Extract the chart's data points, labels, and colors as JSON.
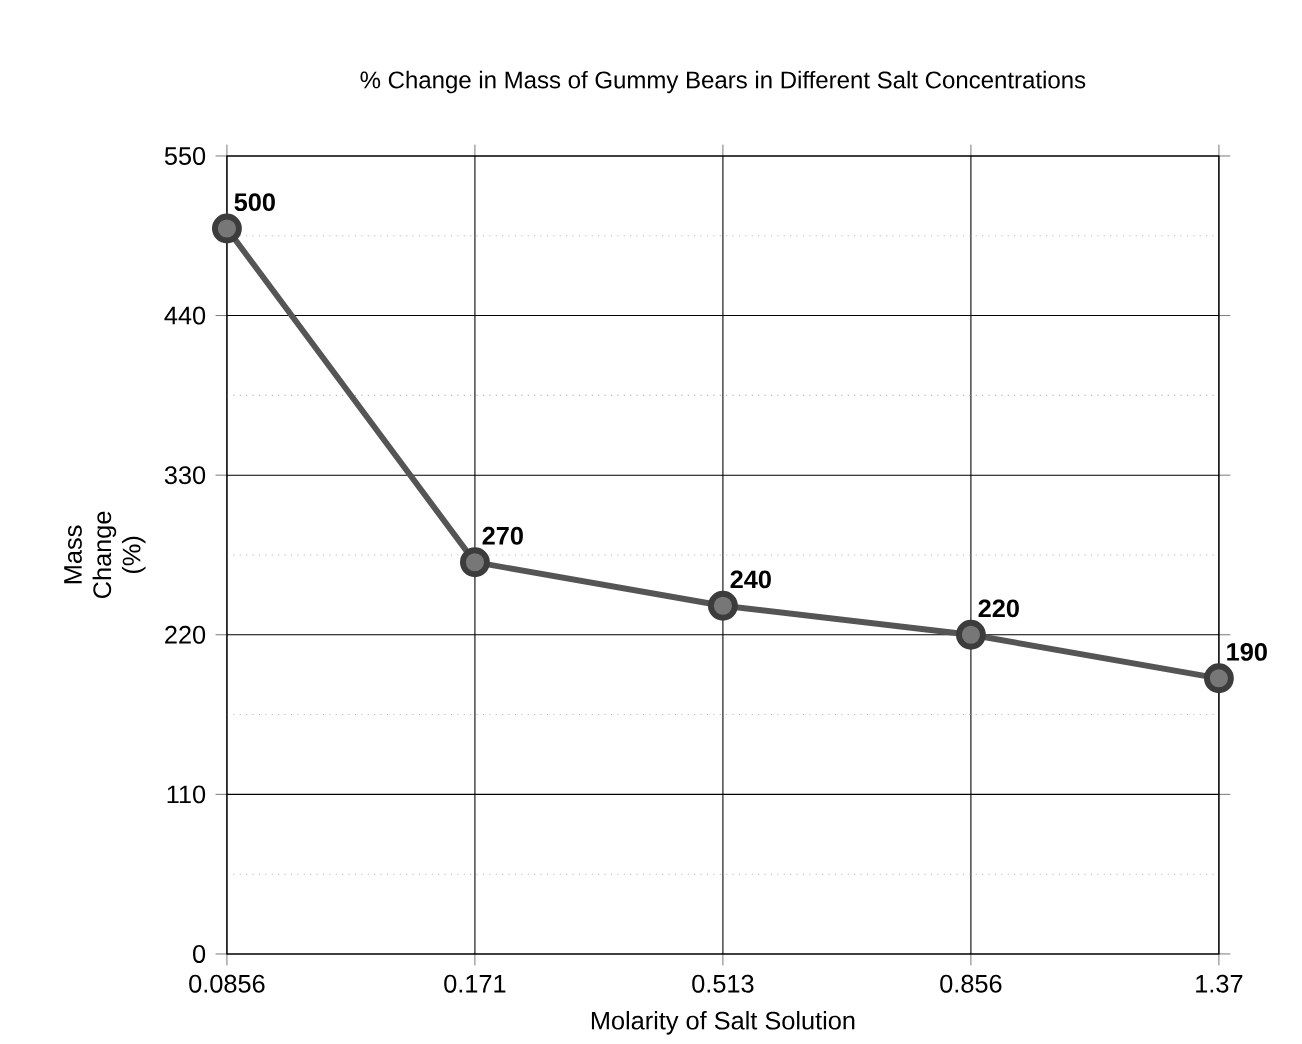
{
  "chart_data": {
    "type": "line",
    "title": "% Change in Mass of Gummy Bears in Different Salt Concentrations",
    "xlabel": "Molarity of Salt Solution",
    "ylabel": "Mass Change (%)",
    "categories": [
      "0.0856",
      "0.171",
      "0.513",
      "0.856",
      "1.37"
    ],
    "series": [
      {
        "color": "#555555",
        "values": [
          500,
          270,
          240,
          220,
          190
        ]
      }
    ],
    "ylim": [
      0,
      550
    ],
    "yticks": [
      0,
      110,
      220,
      330,
      440,
      550
    ],
    "grid": true,
    "marker": "circle",
    "line_style": "solid",
    "data_labels": true
  }
}
